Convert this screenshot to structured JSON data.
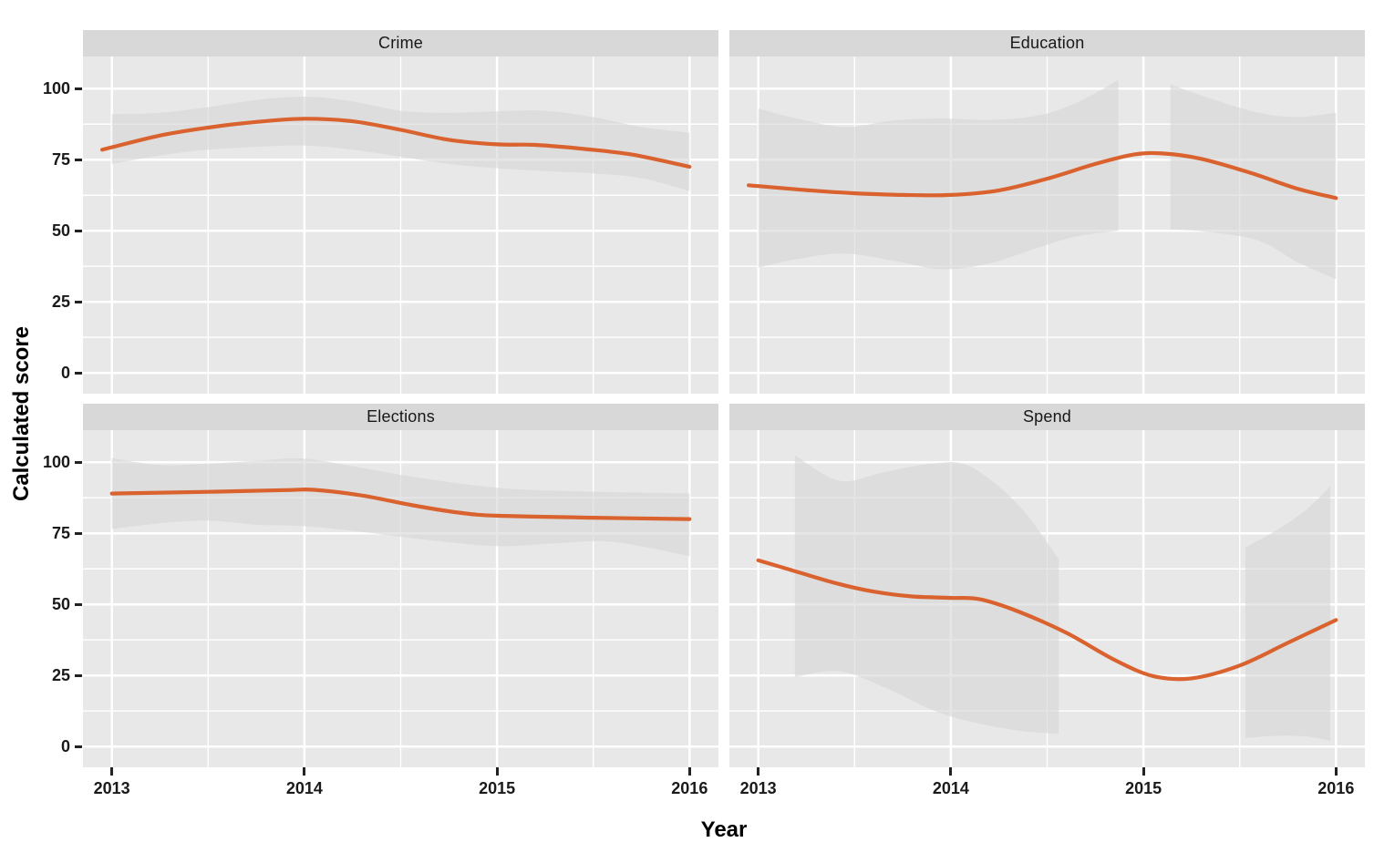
{
  "chart_data": {
    "type": "line",
    "description": "Faceted smoothed line chart (2x2 grid) with grey confidence ribbons, one orange trend line per facet",
    "x_axis": {
      "title": "Year",
      "domain": [
        2012.85,
        2016.15
      ],
      "tick_values": [
        2013,
        2014,
        2015,
        2016
      ],
      "tick_labels": [
        "2013",
        "2014",
        "2015",
        "2016"
      ],
      "minor_values": [
        2013.5,
        2014.5,
        2015.5
      ]
    },
    "y_axis": {
      "title": "Calculated score",
      "domain": [
        -7.3,
        111.3
      ],
      "tick_values": [
        100,
        75,
        50,
        25,
        0
      ],
      "tick_labels": [
        "100",
        "75",
        "50",
        "25",
        "0"
      ],
      "minor_values": [
        12.5,
        37.5,
        62.5,
        87.5
      ]
    },
    "facets": [
      {
        "title": "Crime",
        "line": {
          "x": [
            2012.95,
            2013.25,
            2013.5,
            2013.75,
            2014,
            2014.25,
            2014.5,
            2014.75,
            2015,
            2015.2,
            2015.45,
            2015.7,
            2016
          ],
          "y": [
            78.5,
            83.5,
            86.3,
            88.3,
            89.4,
            88.5,
            85.5,
            82,
            80.4,
            80.2,
            78.8,
            76.8,
            72.5
          ]
        },
        "ribbons": [
          {
            "x": [
              2013,
              2013.25,
              2013.5,
              2013.75,
              2014,
              2014.25,
              2014.5,
              2014.75,
              2015,
              2015.25,
              2015.5,
              2015.75,
              2016
            ],
            "upper": [
              91,
              91.5,
              93.5,
              96,
              97.2,
              95.5,
              92.2,
              91.5,
              92,
              92.2,
              90,
              86.5,
              84.5
            ],
            "lower": [
              73.5,
              76.5,
              78.5,
              79.5,
              80,
              78.5,
              76,
              73.5,
              72,
              71,
              70.2,
              68.5,
              64
            ]
          }
        ]
      },
      {
        "title": "Education",
        "line": {
          "x": [
            2012.95,
            2013.25,
            2013.5,
            2013.75,
            2014,
            2014.25,
            2014.5,
            2014.75,
            2014.95,
            2015.1,
            2015.3,
            2015.55,
            2015.8,
            2016
          ],
          "y": [
            66,
            64.3,
            63.2,
            62.6,
            62.6,
            64.2,
            68.3,
            73.5,
            76.8,
            77.2,
            75.3,
            70.5,
            64.8,
            61.5
          ]
        },
        "ribbons": [
          {
            "x": [
              2013,
              2013.2,
              2013.45,
              2013.7,
              2013.95,
              2014.2,
              2014.45,
              2014.65,
              2014.87
            ],
            "upper": [
              93,
              89.5,
              86.5,
              88.8,
              89.5,
              89,
              90.5,
              95,
              103
            ],
            "lower": [
              37,
              40,
              42,
              39.5,
              36.5,
              38.5,
              44,
              48,
              50
            ]
          },
          {
            "x": [
              2015.14,
              2015.35,
              2015.6,
              2015.8,
              2016
            ],
            "upper": [
              101.5,
              96.5,
              91.5,
              90,
              91.5
            ],
            "lower": [
              50.5,
              49.5,
              46.5,
              39,
              33
            ]
          }
        ]
      },
      {
        "title": "Elections",
        "line": {
          "x": [
            2013,
            2013.5,
            2013.9,
            2014.05,
            2014.3,
            2014.55,
            2014.8,
            2015,
            2015.5,
            2016
          ],
          "y": [
            89,
            89.6,
            90.2,
            90.3,
            88.3,
            85,
            82.3,
            81.2,
            80.5,
            80
          ]
        },
        "ribbons": [
          {
            "x": [
              2013,
              2013.25,
              2013.5,
              2013.75,
              2014,
              2014.3,
              2014.6,
              2015,
              2015.3,
              2015.6,
              2016
            ],
            "upper": [
              101.5,
              99,
              99.5,
              100.5,
              101.3,
              98,
              94.5,
              91,
              90,
              89.5,
              89
            ],
            "lower": [
              76.5,
              78.5,
              79.5,
              78,
              77.5,
              75.5,
              73,
              70.5,
              71.5,
              72,
              67
            ]
          }
        ]
      },
      {
        "title": "Spend",
        "line": {
          "x": [
            2013,
            2013.2,
            2013.4,
            2013.6,
            2013.8,
            2014,
            2014.15,
            2014.35,
            2014.6,
            2014.85,
            2015.05,
            2015.25,
            2015.5,
            2015.75,
            2016
          ],
          "y": [
            65.5,
            61.5,
            57.5,
            54.5,
            52.8,
            52.3,
            51.8,
            47.5,
            40,
            30.5,
            24.8,
            24,
            28.5,
            36.5,
            44.5
          ]
        },
        "ribbons": [
          {
            "x": [
              2013.19,
              2013.42,
              2013.65,
              2013.9,
              2014.1,
              2014.35,
              2014.56
            ],
            "upper": [
              102.5,
              93.5,
              96.5,
              99.5,
              98.5,
              85,
              66
            ],
            "lower": [
              24.5,
              26.5,
              21,
              13,
              8.8,
              5.6,
              4.5
            ]
          },
          {
            "x": [
              2015.53,
              2015.7,
              2015.85,
              2015.97
            ],
            "upper": [
              70,
              76.5,
              83.5,
              91.5
            ],
            "lower": [
              3,
              3.8,
              3.5,
              2
            ]
          }
        ]
      }
    ],
    "style": {
      "line_color": "#D9622E",
      "ribbon_color": "#D6D6D6",
      "ribbon_opacity": 0.6,
      "panel_bg": "#E8E8E8",
      "strip_bg": "#D8D8D8",
      "grid_color": "#FFFFFF",
      "tick_mark_color": "#222222",
      "tick_text_color": "#1A1A1A",
      "title_text_color": "#000000"
    }
  }
}
